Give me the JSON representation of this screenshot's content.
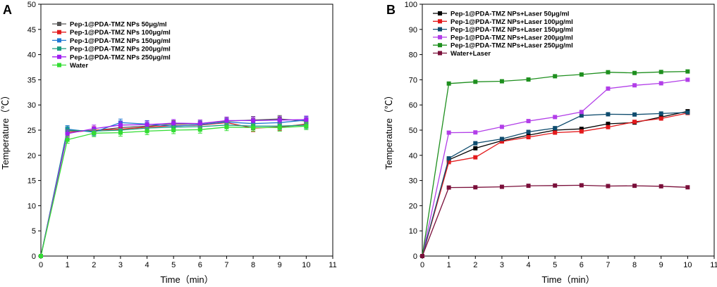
{
  "chart_data": [
    {
      "panel_label": "A",
      "type": "line",
      "title": "",
      "xlabel": "Time（min）",
      "ylabel": "Temperature（℃）",
      "xlim": [
        0,
        11
      ],
      "ylim": [
        0,
        50
      ],
      "xticks": [
        "0",
        "1",
        "2",
        "3",
        "4",
        "5",
        "6",
        "7",
        "8",
        "9",
        "10",
        "11"
      ],
      "yticks": [
        "0",
        "5",
        "10",
        "15",
        "20",
        "25",
        "30",
        "35",
        "40",
        "45",
        "50"
      ],
      "legend_position": "top-left",
      "series": [
        {
          "name": "Pep-1@PDA-TMZ NPs 50μg/ml",
          "color": "#555555",
          "x": [
            0,
            1,
            2,
            3,
            4,
            5,
            6,
            7,
            8,
            9,
            10
          ],
          "values": [
            0,
            24.8,
            24.9,
            25.5,
            25.8,
            26.2,
            26.3,
            26.8,
            27.0,
            27.2,
            26.8
          ]
        },
        {
          "name": "Pep-1@PDA-TMZ NPs 100μg/ml",
          "color": "#e31a1c",
          "x": [
            0,
            1,
            2,
            3,
            4,
            5,
            6,
            7,
            8,
            9,
            10
          ],
          "values": [
            0,
            24.5,
            25.0,
            25.2,
            25.6,
            25.9,
            26.0,
            26.5,
            25.4,
            25.6,
            26.2
          ]
        },
        {
          "name": "Pep-1@PDA-TMZ NPs 150μg/ml",
          "color": "#1f78d4",
          "x": [
            0,
            1,
            2,
            3,
            4,
            5,
            6,
            7,
            8,
            9,
            10
          ],
          "values": [
            0,
            25.2,
            24.6,
            26.5,
            26.2,
            25.8,
            26.1,
            26.6,
            26.3,
            26.5,
            27.0
          ]
        },
        {
          "name": "Pep-1@PDA-TMZ NPs 200μg/ml",
          "color": "#1a9c80",
          "x": [
            0,
            1,
            2,
            3,
            4,
            5,
            6,
            7,
            8,
            9,
            10
          ],
          "values": [
            0,
            25.0,
            24.8,
            25.0,
            25.4,
            25.6,
            25.7,
            26.0,
            25.8,
            25.8,
            26.0
          ]
        },
        {
          "name": "Pep-1@PDA-TMZ NPs 250μg/ml",
          "color": "#a020f0",
          "x": [
            0,
            1,
            2,
            3,
            4,
            5,
            6,
            7,
            8,
            9,
            10
          ],
          "values": [
            0,
            24.3,
            25.3,
            26.0,
            26.1,
            26.4,
            26.3,
            26.9,
            26.9,
            27.0,
            27.1
          ]
        },
        {
          "name": "Water",
          "color": "#33dd33",
          "x": [
            0,
            1,
            2,
            3,
            4,
            5,
            6,
            7,
            8,
            9,
            10
          ],
          "values": [
            0,
            23.1,
            24.4,
            24.5,
            24.8,
            25.0,
            25.1,
            25.6,
            25.5,
            25.5,
            25.8
          ]
        }
      ]
    },
    {
      "panel_label": "B",
      "type": "line",
      "title": "",
      "xlabel": "Time（min）",
      "ylabel": "Temperature（℃）",
      "xlim": [
        0,
        11
      ],
      "ylim": [
        0,
        100
      ],
      "xticks": [
        "0",
        "1",
        "2",
        "3",
        "4",
        "5",
        "6",
        "7",
        "8",
        "9",
        "10",
        "11"
      ],
      "yticks": [
        "0",
        "10",
        "20",
        "30",
        "40",
        "50",
        "60",
        "70",
        "80",
        "90",
        "100"
      ],
      "legend_position": "top-left",
      "series": [
        {
          "name": "Pep-1@PDA-TMZ NPs+Laser 50μg/ml",
          "color": "#000000",
          "x": [
            0,
            1,
            2,
            3,
            4,
            5,
            6,
            7,
            8,
            9,
            10
          ],
          "values": [
            0,
            38.2,
            42.8,
            45.8,
            48.0,
            50.0,
            50.5,
            52.5,
            53.0,
            55.2,
            57.5
          ]
        },
        {
          "name": "Pep-1@PDA-TMZ NPs+Laser 100μg/ml",
          "color": "#e31a1c",
          "x": [
            0,
            1,
            2,
            3,
            4,
            5,
            6,
            7,
            8,
            9,
            10
          ],
          "values": [
            0,
            37.3,
            39.2,
            45.5,
            47.2,
            49.0,
            49.5,
            51.2,
            53.3,
            54.6,
            56.8
          ]
        },
        {
          "name": "Pep-1@PDA-TMZ NPs+Laser 150μg/ml",
          "color": "#0f4c6e",
          "x": [
            0,
            1,
            2,
            3,
            4,
            5,
            6,
            7,
            8,
            9,
            10
          ],
          "values": [
            0,
            38.8,
            44.8,
            46.5,
            49.3,
            50.8,
            55.8,
            56.3,
            56.2,
            56.6,
            57.0
          ]
        },
        {
          "name": "Pep-1@PDA-TMZ NPs+Laser 200μg/ml",
          "color": "#b23ee8",
          "x": [
            0,
            1,
            2,
            3,
            4,
            5,
            6,
            7,
            8,
            9,
            10
          ],
          "values": [
            0,
            49.0,
            49.1,
            51.3,
            53.6,
            55.2,
            57.2,
            66.5,
            67.8,
            68.6,
            70.0
          ]
        },
        {
          "name": "Pep-1@PDA-TMZ NPs+Laser 250μg/ml",
          "color": "#1e8f1e",
          "x": [
            0,
            1,
            2,
            3,
            4,
            5,
            6,
            7,
            8,
            9,
            10
          ],
          "values": [
            0,
            68.5,
            69.2,
            69.4,
            70.1,
            71.4,
            72.1,
            73.0,
            72.7,
            73.1,
            73.3
          ]
        },
        {
          "name": "Water+Laser",
          "color": "#7a0f3a",
          "x": [
            0,
            1,
            2,
            3,
            4,
            5,
            6,
            7,
            8,
            9,
            10
          ],
          "values": [
            0,
            27.2,
            27.3,
            27.5,
            27.9,
            28.0,
            28.1,
            27.8,
            27.9,
            27.7,
            27.3
          ]
        }
      ]
    }
  ]
}
